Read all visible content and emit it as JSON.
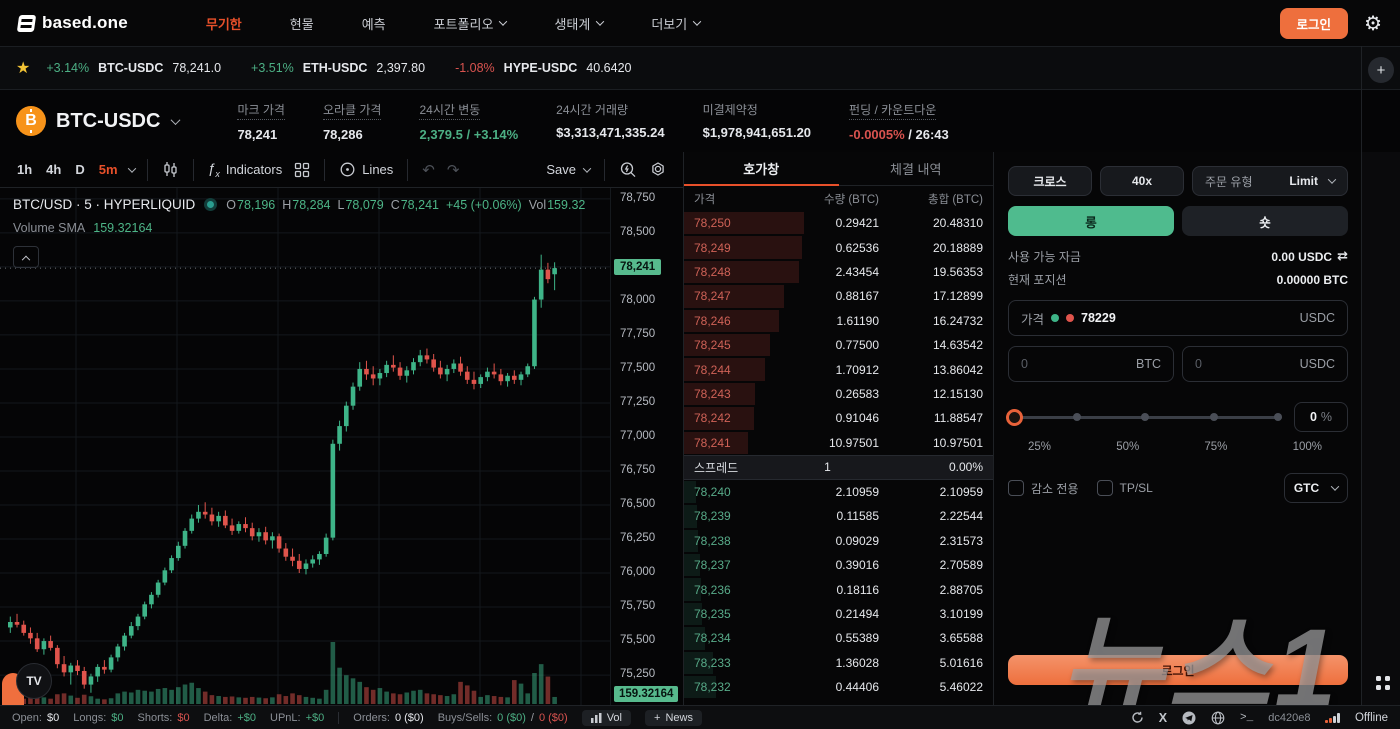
{
  "nav": {
    "logo": "based.one",
    "items": [
      {
        "label": "무기한",
        "active": true,
        "dropdown": false
      },
      {
        "label": "현물",
        "active": false,
        "dropdown": false
      },
      {
        "label": "예측",
        "active": false,
        "dropdown": false
      },
      {
        "label": "포트폴리오",
        "active": false,
        "dropdown": true
      },
      {
        "label": "생태계",
        "active": false,
        "dropdown": true
      },
      {
        "label": "더보기",
        "active": false,
        "dropdown": true
      }
    ],
    "login_label": "로그인"
  },
  "ticker": {
    "items": [
      {
        "change": "+3.14%",
        "pair": "BTC-USDC",
        "price": "78,241.0",
        "dir": "up"
      },
      {
        "change": "+3.51%",
        "pair": "ETH-USDC",
        "price": "2,397.80",
        "dir": "up"
      },
      {
        "change": "-1.08%",
        "pair": "HYPE-USDC",
        "price": "40.6420",
        "dir": "down"
      }
    ]
  },
  "market": {
    "pair": "BTC-USDC",
    "stats": [
      {
        "label": "마크 가격",
        "dotted": true,
        "parts": [
          {
            "t": "78,241",
            "c": "white"
          }
        ]
      },
      {
        "label": "오라클 가격",
        "dotted": true,
        "parts": [
          {
            "t": "78,286",
            "c": "white"
          }
        ]
      },
      {
        "label": "24시간 변동",
        "dotted": true,
        "parts": [
          {
            "t": "2,379.5 / +3.14%",
            "c": "green"
          }
        ]
      },
      {
        "label": "24시간 거래량",
        "dotted": false,
        "parts": [
          {
            "t": "$3,313,471,335.24",
            "c": "white"
          }
        ]
      },
      {
        "label": "미결제약정",
        "dotted": false,
        "parts": [
          {
            "t": "$1,978,941,651.20",
            "c": "white"
          }
        ]
      },
      {
        "label": "펀딩 / 카운트다운",
        "dotted": true,
        "parts": [
          {
            "t": "-0.0005%",
            "c": "red"
          },
          {
            "t": " / 26:43",
            "c": "white"
          }
        ]
      }
    ]
  },
  "chart_toolbar": {
    "intervals": [
      {
        "label": "1h",
        "active": false
      },
      {
        "label": "4h",
        "active": false
      },
      {
        "label": "D",
        "active": false
      },
      {
        "label": "5m",
        "active": true
      }
    ],
    "indicators_label": "Indicators",
    "lines_label": "Lines",
    "save_label": "Save"
  },
  "chart_data": {
    "type": "candlestick",
    "symbol_legend": "BTC/USD · 5 · HYPERLIQUID",
    "ohlc_parts": [
      {
        "k": "O",
        "v": "78,196"
      },
      {
        "k": "H",
        "v": "78,284"
      },
      {
        "k": "L",
        "v": "78,079"
      },
      {
        "k": "C",
        "v": "78,241"
      },
      {
        "k": "",
        "v": "+45 (+0.06%)"
      },
      {
        "k": "Vol",
        "v": "159.32"
      }
    ],
    "indicator_label": "Volume SMA",
    "indicator_value": "159.32164",
    "last_price": 78241,
    "price_tag": "78,241",
    "volume_tag": "159.32164",
    "up_color": "#3eb488",
    "down_color": "#e0544c",
    "y_ticks": [
      "78,750",
      "78,500",
      "78,000",
      "77,750",
      "77,500",
      "77,250",
      "77,000",
      "76,750",
      "76,500",
      "76,250",
      "76,000",
      "75,750",
      "75,500",
      "75,250"
    ],
    "ylim": [
      75030,
      78830
    ],
    "candles": [
      [
        75600,
        75680,
        75560,
        75640
      ],
      [
        75640,
        75700,
        75600,
        75620
      ],
      [
        75620,
        75650,
        75540,
        75560
      ],
      [
        75560,
        75600,
        75480,
        75520
      ],
      [
        75520,
        75560,
        75420,
        75440
      ],
      [
        75440,
        75520,
        75400,
        75500
      ],
      [
        75500,
        75540,
        75430,
        75450
      ],
      [
        75450,
        75470,
        75300,
        75330
      ],
      [
        75330,
        75390,
        75240,
        75270
      ],
      [
        75270,
        75340,
        75180,
        75320
      ],
      [
        75320,
        75360,
        75250,
        75280
      ],
      [
        75280,
        75310,
        75150,
        75180
      ],
      [
        75180,
        75260,
        75120,
        75240
      ],
      [
        75240,
        75330,
        75200,
        75310
      ],
      [
        75310,
        75360,
        75260,
        75290
      ],
      [
        75290,
        75400,
        75270,
        75380
      ],
      [
        75380,
        75480,
        75350,
        75460
      ],
      [
        75460,
        75560,
        75430,
        75540
      ],
      [
        75540,
        75640,
        75520,
        75610
      ],
      [
        75610,
        75700,
        75580,
        75680
      ],
      [
        75680,
        75790,
        75660,
        75770
      ],
      [
        75770,
        75860,
        75740,
        75840
      ],
      [
        75840,
        75950,
        75820,
        75930
      ],
      [
        75930,
        76040,
        75910,
        76020
      ],
      [
        76020,
        76130,
        76000,
        76110
      ],
      [
        76110,
        76230,
        76090,
        76200
      ],
      [
        76200,
        76330,
        76180,
        76310
      ],
      [
        76310,
        76430,
        76290,
        76400
      ],
      [
        76400,
        76500,
        76370,
        76450
      ],
      [
        76450,
        76520,
        76400,
        76430
      ],
      [
        76430,
        76480,
        76350,
        76380
      ],
      [
        76380,
        76450,
        76340,
        76420
      ],
      [
        76420,
        76460,
        76330,
        76350
      ],
      [
        76350,
        76400,
        76280,
        76310
      ],
      [
        76310,
        76380,
        76290,
        76360
      ],
      [
        76360,
        76410,
        76300,
        76330
      ],
      [
        76330,
        76370,
        76240,
        76270
      ],
      [
        76270,
        76330,
        76230,
        76300
      ],
      [
        76300,
        76340,
        76210,
        76240
      ],
      [
        76240,
        76300,
        76180,
        76270
      ],
      [
        76270,
        76290,
        76150,
        76180
      ],
      [
        76180,
        76220,
        76090,
        76120
      ],
      [
        76120,
        76180,
        76050,
        76090
      ],
      [
        76090,
        76140,
        76000,
        76030
      ],
      [
        76030,
        76100,
        75990,
        76070
      ],
      [
        76070,
        76130,
        76040,
        76100
      ],
      [
        76100,
        76160,
        76060,
        76140
      ],
      [
        76140,
        76290,
        76120,
        76260
      ],
      [
        76260,
        76980,
        76240,
        76950
      ],
      [
        76950,
        77120,
        76900,
        77080
      ],
      [
        77080,
        77260,
        77040,
        77230
      ],
      [
        77230,
        77400,
        77200,
        77370
      ],
      [
        77370,
        77550,
        77340,
        77500
      ],
      [
        77500,
        77560,
        77420,
        77460
      ],
      [
        77460,
        77520,
        77380,
        77430
      ],
      [
        77430,
        77500,
        77380,
        77470
      ],
      [
        77470,
        77560,
        77440,
        77530
      ],
      [
        77530,
        77600,
        77480,
        77510
      ],
      [
        77510,
        77550,
        77420,
        77450
      ],
      [
        77450,
        77520,
        77400,
        77490
      ],
      [
        77490,
        77580,
        77460,
        77550
      ],
      [
        77550,
        77640,
        77520,
        77600
      ],
      [
        77600,
        77650,
        77540,
        77570
      ],
      [
        77570,
        77610,
        77480,
        77510
      ],
      [
        77510,
        77560,
        77430,
        77460
      ],
      [
        77460,
        77530,
        77410,
        77500
      ],
      [
        77500,
        77570,
        77470,
        77540
      ],
      [
        77540,
        77590,
        77450,
        77480
      ],
      [
        77480,
        77520,
        77390,
        77420
      ],
      [
        77420,
        77480,
        77350,
        77390
      ],
      [
        77390,
        77460,
        77360,
        77440
      ],
      [
        77440,
        77510,
        77410,
        77480
      ],
      [
        77480,
        77540,
        77430,
        77460
      ],
      [
        77460,
        77500,
        77380,
        77410
      ],
      [
        77410,
        77470,
        77370,
        77450
      ],
      [
        77450,
        77490,
        77390,
        77420
      ],
      [
        77420,
        77480,
        77380,
        77460
      ],
      [
        77460,
        77540,
        77440,
        77520
      ],
      [
        77520,
        78030,
        77500,
        78010
      ],
      [
        78010,
        78340,
        77950,
        78230
      ],
      [
        78230,
        78280,
        78130,
        78160
      ],
      [
        78196,
        78284,
        78079,
        78241
      ]
    ],
    "volumes": [
      160,
      140,
      120,
      180,
      200,
      150,
      120,
      220,
      240,
      190,
      140,
      210,
      175,
      120,
      105,
      130,
      240,
      280,
      260,
      320,
      300,
      280,
      340,
      360,
      320,
      380,
      440,
      480,
      360,
      280,
      200,
      180,
      160,
      170,
      150,
      140,
      160,
      145,
      130,
      150,
      220,
      180,
      240,
      200,
      160,
      140,
      120,
      320,
      1400,
      820,
      650,
      580,
      500,
      380,
      320,
      360,
      280,
      240,
      220,
      260,
      300,
      320,
      240,
      220,
      200,
      180,
      220,
      500,
      420,
      300,
      160,
      200,
      180,
      160,
      150,
      540,
      460,
      240,
      700,
      900,
      620,
      159
    ]
  },
  "orderbook": {
    "tabs": [
      {
        "label": "호가창",
        "active": true
      },
      {
        "label": "체결 내역",
        "active": false
      }
    ],
    "columns": [
      "가격",
      "수량 (BTC)",
      "총합 (BTC)"
    ],
    "asks": [
      {
        "price": "78,250",
        "size": "0.29421",
        "total": "20.48310"
      },
      {
        "price": "78,249",
        "size": "0.62536",
        "total": "20.18889"
      },
      {
        "price": "78,248",
        "size": "2.43454",
        "total": "19.56353"
      },
      {
        "price": "78,247",
        "size": "0.88167",
        "total": "17.12899"
      },
      {
        "price": "78,246",
        "size": "1.61190",
        "total": "16.24732"
      },
      {
        "price": "78,245",
        "size": "0.77500",
        "total": "14.63542"
      },
      {
        "price": "78,244",
        "size": "1.70912",
        "total": "13.86042"
      },
      {
        "price": "78,243",
        "size": "0.26583",
        "total": "12.15130"
      },
      {
        "price": "78,242",
        "size": "0.91046",
        "total": "11.88547"
      },
      {
        "price": "78,241",
        "size": "10.97501",
        "total": "10.97501"
      }
    ],
    "spread": {
      "label": "스프레드",
      "value": "1",
      "pct": "0.00%"
    },
    "bids": [
      {
        "price": "78,240",
        "size": "2.10959",
        "total": "2.10959"
      },
      {
        "price": "78,239",
        "size": "0.11585",
        "total": "2.22544"
      },
      {
        "price": "78,238",
        "size": "0.09029",
        "total": "2.31573"
      },
      {
        "price": "78,237",
        "size": "0.39016",
        "total": "2.70589"
      },
      {
        "price": "78,236",
        "size": "0.18116",
        "total": "2.88705"
      },
      {
        "price": "78,235",
        "size": "0.21494",
        "total": "3.10199"
      },
      {
        "price": "78,234",
        "size": "0.55389",
        "total": "3.65588"
      },
      {
        "price": "78,233",
        "size": "1.36028",
        "total": "5.01616"
      },
      {
        "price": "78,232",
        "size": "0.44406",
        "total": "5.46022"
      }
    ]
  },
  "trade_panel": {
    "margin_mode": "크로스",
    "leverage": "40x",
    "order_type_label": "주문 유형",
    "order_type_value": "Limit",
    "long_label": "롱",
    "short_label": "숏",
    "available_label": "사용 가능 자금",
    "available_value": "0.00 USDC",
    "position_label": "현재 포지션",
    "position_value": "0.00000 BTC",
    "price_label": "가격",
    "price_value": "78229",
    "price_unit": "USDC",
    "size_placeholder_btc": "0",
    "size_placeholder_usdc": "0",
    "unit_btc": "BTC",
    "unit_usdc": "USDC",
    "slider_value": "0",
    "slider_unit": "%",
    "slider_labels": [
      "25%",
      "50%",
      "75%",
      "100%"
    ],
    "reduce_only_label": "감소 전용",
    "tpsl_label": "TP/SL",
    "tif_value": "GTC",
    "login_label": "로그인"
  },
  "status_bar": {
    "items": [
      {
        "label": "Open:",
        "parts": [
          {
            "t": "$0",
            "c": "white"
          }
        ],
        "div": false
      },
      {
        "label": "Longs:",
        "parts": [
          {
            "t": "$0",
            "c": "green"
          }
        ],
        "div": false
      },
      {
        "label": "Shorts:",
        "parts": [
          {
            "t": "$0",
            "c": "red"
          }
        ],
        "div": false
      },
      {
        "label": "Delta:",
        "parts": [
          {
            "t": "+$0",
            "c": "green"
          }
        ],
        "div": false
      },
      {
        "label": "UPnL:",
        "parts": [
          {
            "t": "+$0",
            "c": "green"
          }
        ],
        "div": true
      },
      {
        "label": "Orders:",
        "parts": [
          {
            "t": "0 ($0)",
            "c": "white"
          }
        ],
        "div": false
      },
      {
        "label": "Buys/Sells:",
        "parts": [
          {
            "t": "0 ($0)",
            "c": "green"
          },
          {
            "t": "/",
            "c": "gray"
          },
          {
            "t": "0 ($0)",
            "c": "red"
          }
        ],
        "div": false
      }
    ],
    "vol_label": "Vol",
    "news_label": "News",
    "build": "dc420e8",
    "offline": "Offline"
  },
  "watermark": {
    "text": "뉴스1"
  },
  "colors": {
    "accent_orange": "#ee6f3d",
    "up_green": "#4caf84",
    "down_red": "#d9534f",
    "active_tab": "#e8502a"
  }
}
